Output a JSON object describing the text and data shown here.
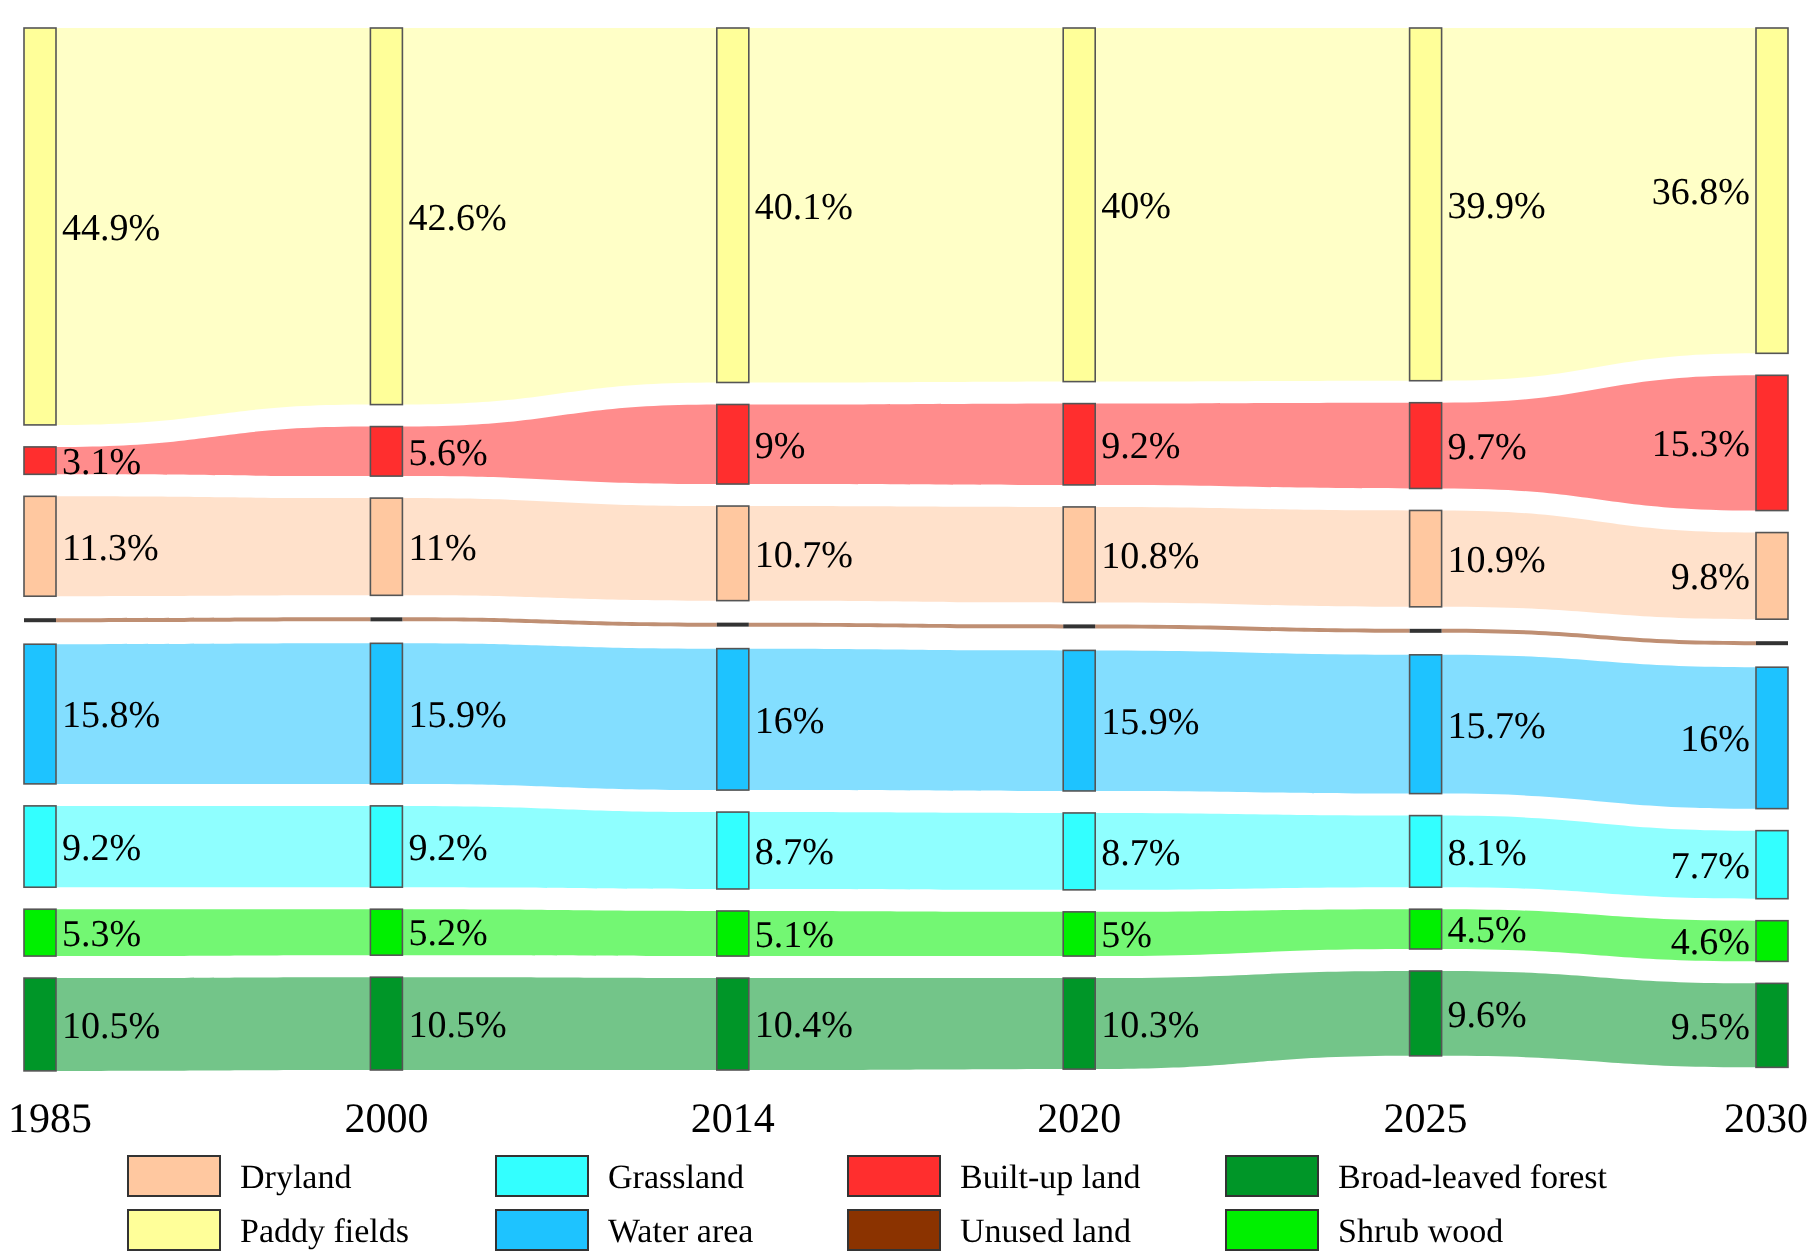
{
  "chart_data": {
    "type": "other",
    "categories": [
      "1985",
      "2000",
      "2014",
      "2020",
      "2025",
      "2030"
    ],
    "legend": "bottom",
    "series": [
      {
        "name": "Dryland",
        "color": "#ffc8a0",
        "values": [
          11.3,
          11,
          10.7,
          10.8,
          10.9,
          9.8
        ],
        "value_labels": [
          "11.3%",
          "11%",
          "10.7%",
          "10.8%",
          "10.9%",
          "9.8%"
        ]
      },
      {
        "name": "Paddy fields",
        "color": "#ffff99",
        "values": [
          44.9,
          42.6,
          40.1,
          40,
          39.9,
          36.8
        ],
        "value_labels": [
          "44.9%",
          "42.6%",
          "40.1%",
          "40%",
          "39.9%",
          "36.8%"
        ]
      },
      {
        "name": "Grassland",
        "color": "#33ffff",
        "values": [
          9.2,
          9.2,
          8.7,
          8.7,
          8.1,
          7.7
        ],
        "value_labels": [
          "9.2%",
          "9.2%",
          "8.7%",
          "8.7%",
          "8.1%",
          "7.7%"
        ]
      },
      {
        "name": "Water area",
        "color": "#1ec3ff",
        "values": [
          15.8,
          15.9,
          16,
          15.9,
          15.7,
          16
        ],
        "value_labels": [
          "15.8%",
          "15.9%",
          "16%",
          "15.9%",
          "15.7%",
          "16%"
        ]
      },
      {
        "name": "Built-up land",
        "color": "#ff2e2e",
        "values": [
          3.1,
          5.6,
          9,
          9.2,
          9.7,
          15.3
        ],
        "value_labels": [
          "3.1%",
          "5.6%",
          "9%",
          "9.2%",
          "9.7%",
          "15.3%"
        ]
      },
      {
        "name": "Unused land",
        "color": "#8b3300",
        "values": [
          null,
          null,
          null,
          null,
          null,
          null
        ]
      },
      {
        "name": "Broad-leaved forest",
        "color": "#009628",
        "values": [
          10.5,
          10.5,
          10.4,
          10.3,
          9.6,
          9.5
        ],
        "value_labels": [
          "10.5%",
          "10.5%",
          "10.4%",
          "10.3%",
          "9.6%",
          "9.5%"
        ]
      },
      {
        "name": "Shrub wood",
        "color": "#00f000",
        "values": [
          5.3,
          5.2,
          5.1,
          5,
          4.5,
          4.6
        ],
        "value_labels": [
          "5.3%",
          "5.2%",
          "5.1%",
          "5%",
          "4.5%",
          "4.6%"
        ]
      }
    ]
  }
}
